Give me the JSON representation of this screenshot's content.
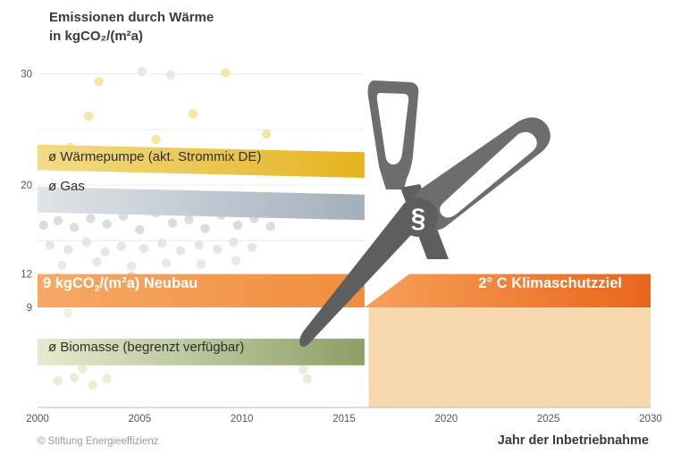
{
  "chart_data": {
    "type": "scatter",
    "title_line1": "Emissionen durch Wärme",
    "title_line2": "in kgCO₂/(m²a)",
    "xlabel": "Jahr der Inbetriebnahme",
    "copyright": "© Stiftung Energieeffizienz",
    "xlim": [
      2000,
      2030
    ],
    "ylim": [
      0,
      36
    ],
    "x_ticks": [
      2000,
      2005,
      2010,
      2015,
      2020,
      2025,
      2030
    ],
    "y_ticks": [
      9,
      12,
      20,
      30
    ],
    "grid_y": [
      30,
      25,
      20,
      15,
      10,
      5
    ],
    "bands": [
      {
        "id": "waermepumpe",
        "label": "ø Wärmepumpe (akt. Strommix DE)",
        "y_start": 22.5,
        "y_end": 21.8,
        "thickness": 2.3,
        "x_end": 2016,
        "color": "#e9c23b"
      },
      {
        "id": "gas",
        "label": "ø Gas",
        "y_start": 18.7,
        "y_end": 18.0,
        "thickness": 2.3,
        "x_end": 2016,
        "color": "#b1bcc6"
      },
      {
        "id": "biomasse",
        "label": "ø Biomasse (begrenzt verfügbar)",
        "y_start": 5.0,
        "y_end": 5.0,
        "thickness": 2.4,
        "x_end": 2016,
        "color": "#a6b783"
      }
    ],
    "neubau": {
      "label_main": "9 kgCO",
      "label_sub": "2",
      "label_rest": "/(m²a) Neubau",
      "y_low": 9,
      "y_high": 12,
      "x_end": 2016,
      "color": "#f08a3a"
    },
    "klimaschutz": {
      "label": "2° C Klimaschutzziel",
      "y_low": 9,
      "y_high": 12,
      "x_start": 2016,
      "x_end": 2030,
      "color": "#ed6e22"
    },
    "target_area": {
      "x_start": 2016.2,
      "x_end": 2030,
      "y_low": 0,
      "y_high": 9,
      "color": "#f8d8ad"
    },
    "symbol": "§",
    "points": [
      {
        "x": 2000.3,
        "y": 16.4,
        "c": "#d9dde1"
      },
      {
        "x": 2001.0,
        "y": 16.8,
        "c": "#d9dde1"
      },
      {
        "x": 2001.8,
        "y": 16.2,
        "c": "#d9dde1"
      },
      {
        "x": 2002.6,
        "y": 17.0,
        "c": "#d9dde1"
      },
      {
        "x": 2003.4,
        "y": 16.5,
        "c": "#d9dde1"
      },
      {
        "x": 2004.2,
        "y": 17.2,
        "c": "#d9dde1"
      },
      {
        "x": 2005.0,
        "y": 16.0,
        "c": "#d9dde1"
      },
      {
        "x": 2005.8,
        "y": 17.5,
        "c": "#d9dde1"
      },
      {
        "x": 2006.6,
        "y": 16.6,
        "c": "#d9dde1"
      },
      {
        "x": 2007.4,
        "y": 16.9,
        "c": "#d9dde1"
      },
      {
        "x": 2008.2,
        "y": 16.1,
        "c": "#d9dde1"
      },
      {
        "x": 2009.0,
        "y": 17.3,
        "c": "#d9dde1"
      },
      {
        "x": 2009.8,
        "y": 16.4,
        "c": "#d9dde1"
      },
      {
        "x": 2010.6,
        "y": 17.0,
        "c": "#d9dde1"
      },
      {
        "x": 2011.4,
        "y": 16.3,
        "c": "#d9dde1"
      },
      {
        "x": 2000.6,
        "y": 14.6,
        "c": "#e3e6e9"
      },
      {
        "x": 2001.5,
        "y": 14.2,
        "c": "#e3e6e9"
      },
      {
        "x": 2002.4,
        "y": 14.9,
        "c": "#e3e6e9"
      },
      {
        "x": 2003.3,
        "y": 14.0,
        "c": "#e3e6e9"
      },
      {
        "x": 2004.1,
        "y": 14.5,
        "c": "#e3e6e9"
      },
      {
        "x": 2005.2,
        "y": 14.3,
        "c": "#e3e6e9"
      },
      {
        "x": 2006.1,
        "y": 14.8,
        "c": "#e3e6e9"
      },
      {
        "x": 2007.0,
        "y": 14.1,
        "c": "#e3e6e9"
      },
      {
        "x": 2007.9,
        "y": 14.6,
        "c": "#e3e6e9"
      },
      {
        "x": 2008.8,
        "y": 14.2,
        "c": "#e3e6e9"
      },
      {
        "x": 2009.6,
        "y": 14.9,
        "c": "#e3e6e9"
      },
      {
        "x": 2010.5,
        "y": 14.4,
        "c": "#e3e6e9"
      },
      {
        "x": 2001.2,
        "y": 12.8,
        "c": "#e6e8ea"
      },
      {
        "x": 2002.9,
        "y": 13.1,
        "c": "#e6e8ea"
      },
      {
        "x": 2004.6,
        "y": 12.7,
        "c": "#e6e8ea"
      },
      {
        "x": 2006.3,
        "y": 13.0,
        "c": "#e6e8ea"
      },
      {
        "x": 2008.0,
        "y": 12.9,
        "c": "#e6e8ea"
      },
      {
        "x": 2009.7,
        "y": 13.2,
        "c": "#e6e8ea"
      },
      {
        "x": 2003.0,
        "y": 29.3,
        "c": "#f3e7a6"
      },
      {
        "x": 2002.5,
        "y": 26.2,
        "c": "#f3e7a6"
      },
      {
        "x": 2005.8,
        "y": 24.1,
        "c": "#f3e7a6"
      },
      {
        "x": 2007.6,
        "y": 26.4,
        "c": "#f3e7a6"
      },
      {
        "x": 2011.2,
        "y": 24.6,
        "c": "#f3e7a6"
      },
      {
        "x": 2009.2,
        "y": 30.1,
        "c": "#f3e7a6"
      },
      {
        "x": 2004.0,
        "y": 23.0,
        "c": "#f3e7a6"
      },
      {
        "x": 2006.5,
        "y": 29.9,
        "c": "#e8e8e8"
      },
      {
        "x": 2001.6,
        "y": 23.4,
        "c": "#f3e7a6"
      },
      {
        "x": 2005.1,
        "y": 30.2,
        "c": "#e8e8e8"
      },
      {
        "x": 2008.8,
        "y": 19.0,
        "c": "#f3e7a6"
      },
      {
        "x": 2014.3,
        "y": 17.8,
        "c": "#f3e7a6"
      },
      {
        "x": 2001.0,
        "y": 11.7,
        "c": "#f6d3b3"
      },
      {
        "x": 2004.6,
        "y": 11.8,
        "c": "#f6d3b3"
      },
      {
        "x": 2010.7,
        "y": 9.5,
        "c": "#e2a594"
      },
      {
        "x": 2014.5,
        "y": 11.2,
        "c": "#f6d3b3"
      },
      {
        "x": 2001.0,
        "y": 2.4,
        "c": "#e8edd4"
      },
      {
        "x": 2001.8,
        "y": 2.7,
        "c": "#e8edd4"
      },
      {
        "x": 2002.7,
        "y": 2.0,
        "c": "#e8edd4"
      },
      {
        "x": 2003.4,
        "y": 2.6,
        "c": "#e8edd4"
      },
      {
        "x": 2002.2,
        "y": 3.5,
        "c": "#e8edd4"
      },
      {
        "x": 2012.3,
        "y": 4.3,
        "c": "#e8edd4"
      },
      {
        "x": 2013.0,
        "y": 3.4,
        "c": "#e8edd4"
      },
      {
        "x": 2001.5,
        "y": 8.5,
        "c": "#eef0e2"
      },
      {
        "x": 2013.2,
        "y": 2.6,
        "c": "#e8edd4"
      }
    ]
  }
}
